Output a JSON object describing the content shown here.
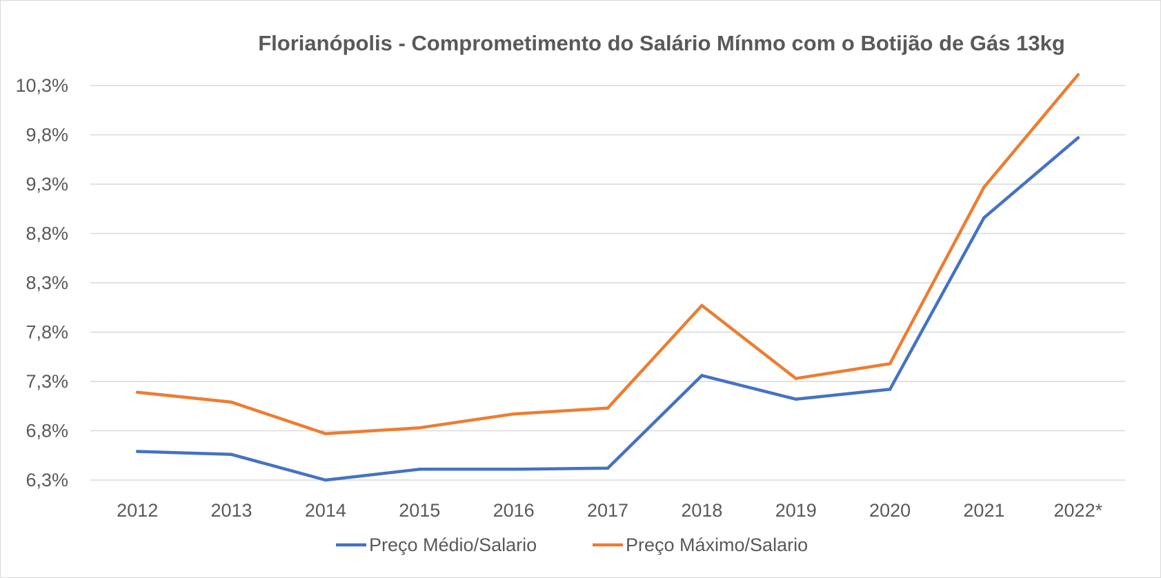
{
  "chart_data": {
    "type": "line",
    "title": "Florianópolis - Comprometimento do Salário Mínmo com o Botijão de Gás 13kg",
    "xlabel": "",
    "ylabel": "",
    "categories": [
      "2012",
      "2013",
      "2014",
      "2015",
      "2016",
      "2017",
      "2018",
      "2019",
      "2020",
      "2021",
      "2022*"
    ],
    "y_ticks": [
      "6,3%",
      "6,8%",
      "7,3%",
      "7,8%",
      "8,3%",
      "8,8%",
      "9,3%",
      "9,8%",
      "10,3%"
    ],
    "y_tick_values": [
      6.3,
      6.8,
      7.3,
      7.8,
      8.3,
      8.8,
      9.3,
      9.8,
      10.3
    ],
    "ylim": [
      6.3,
      10.3
    ],
    "grid": true,
    "legend_position": "bottom",
    "series": [
      {
        "name": "Preço Médio/Salario",
        "color": "#4472c4",
        "values": [
          6.59,
          6.56,
          6.3,
          6.41,
          6.41,
          6.42,
          7.36,
          7.12,
          7.22,
          8.96,
          9.77
        ]
      },
      {
        "name": "Preço Máximo/Salario",
        "color": "#ed7d31",
        "values": [
          7.19,
          7.09,
          6.77,
          6.83,
          6.97,
          7.03,
          8.07,
          7.33,
          7.48,
          9.27,
          10.41
        ]
      }
    ]
  }
}
